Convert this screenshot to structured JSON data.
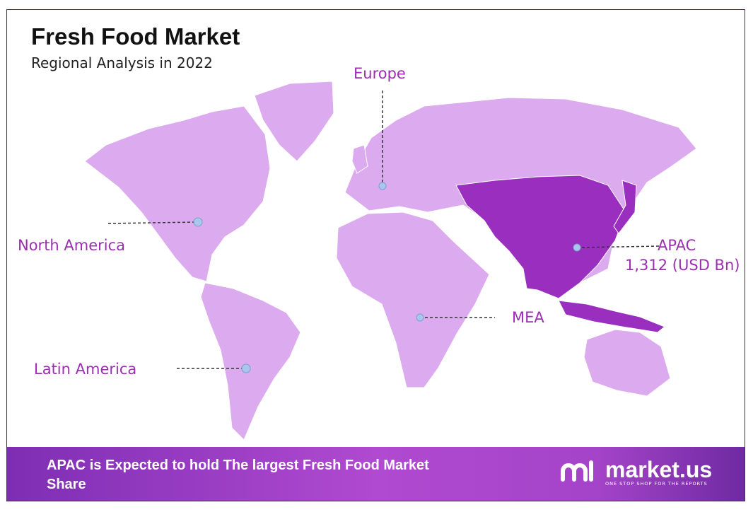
{
  "header": {
    "title": "Fresh Food Market",
    "subtitle": "Regional Analysis in 2022"
  },
  "regions": [
    {
      "name": "North America",
      "highlighted": false
    },
    {
      "name": "Europe",
      "highlighted": false
    },
    {
      "name": "APAC",
      "value": "1,312 (USD Bn)",
      "highlighted": true
    },
    {
      "name": "MEA",
      "highlighted": false
    },
    {
      "name": "Latin America",
      "highlighted": false
    }
  ],
  "colors": {
    "land": "#dcaaee",
    "highlight": "#9a2fbf",
    "label": "#9a2fb0",
    "marker": "#a9c6ee"
  },
  "footer": {
    "headline": "APAC is Expected to hold The largest Fresh Food Market Share"
  },
  "logo": {
    "name": "market.us",
    "tagline": "ONE STOP SHOP FOR THE REPORTS"
  }
}
